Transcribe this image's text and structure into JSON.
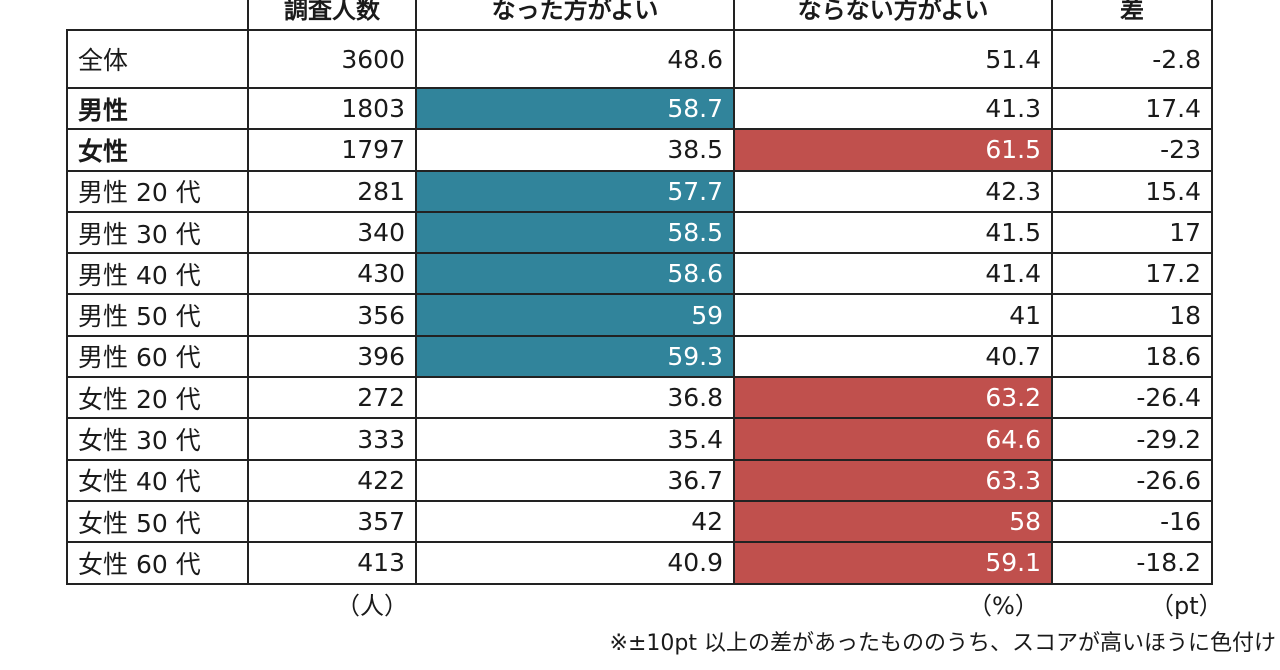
{
  "chart_data": {
    "type": "table",
    "columns": [
      "",
      "調査人数",
      "なった方がよい",
      "ならない方がよい",
      "差"
    ],
    "rows": [
      {
        "label": "全体",
        "n": "3600",
        "yes": "48.6",
        "no": "51.4",
        "diff": "-2.8",
        "highlight": "none",
        "bold": false
      },
      {
        "label": "男性",
        "n": "1803",
        "yes": "58.7",
        "no": "41.3",
        "diff": "17.4",
        "highlight": "yes",
        "bold": true
      },
      {
        "label": "女性",
        "n": "1797",
        "yes": "38.5",
        "no": "61.5",
        "diff": "-23",
        "highlight": "no",
        "bold": true
      },
      {
        "label": "男性 20 代",
        "n": "281",
        "yes": "57.7",
        "no": "42.3",
        "diff": "15.4",
        "highlight": "yes",
        "bold": false
      },
      {
        "label": "男性 30 代",
        "n": "340",
        "yes": "58.5",
        "no": "41.5",
        "diff": "17",
        "highlight": "yes",
        "bold": false
      },
      {
        "label": "男性 40 代",
        "n": "430",
        "yes": "58.6",
        "no": "41.4",
        "diff": "17.2",
        "highlight": "yes",
        "bold": false
      },
      {
        "label": "男性 50 代",
        "n": "356",
        "yes": "59",
        "no": "41",
        "diff": "18",
        "highlight": "yes",
        "bold": false
      },
      {
        "label": "男性 60 代",
        "n": "396",
        "yes": "59.3",
        "no": "40.7",
        "diff": "18.6",
        "highlight": "yes",
        "bold": false
      },
      {
        "label": "女性 20 代",
        "n": "272",
        "yes": "36.8",
        "no": "63.2",
        "diff": "-26.4",
        "highlight": "no",
        "bold": false
      },
      {
        "label": "女性 30 代",
        "n": "333",
        "yes": "35.4",
        "no": "64.6",
        "diff": "-29.2",
        "highlight": "no",
        "bold": false
      },
      {
        "label": "女性 40 代",
        "n": "422",
        "yes": "36.7",
        "no": "63.3",
        "diff": "-26.6",
        "highlight": "no",
        "bold": false
      },
      {
        "label": "女性 50 代",
        "n": "357",
        "yes": "42",
        "no": "58",
        "diff": "-16",
        "highlight": "no",
        "bold": false
      },
      {
        "label": "女性 60 代",
        "n": "413",
        "yes": "40.9",
        "no": "59.1",
        "diff": "-18.2",
        "highlight": "no",
        "bold": false
      }
    ],
    "units": {
      "n": "（人）",
      "pct": "（%）",
      "diff": "（pt）"
    },
    "note": "※±10pt 以上の差があったもののうち、スコアが高いほうに色付け",
    "colors": {
      "yes_highlight": "#31849b",
      "no_highlight": "#c0504d"
    }
  }
}
